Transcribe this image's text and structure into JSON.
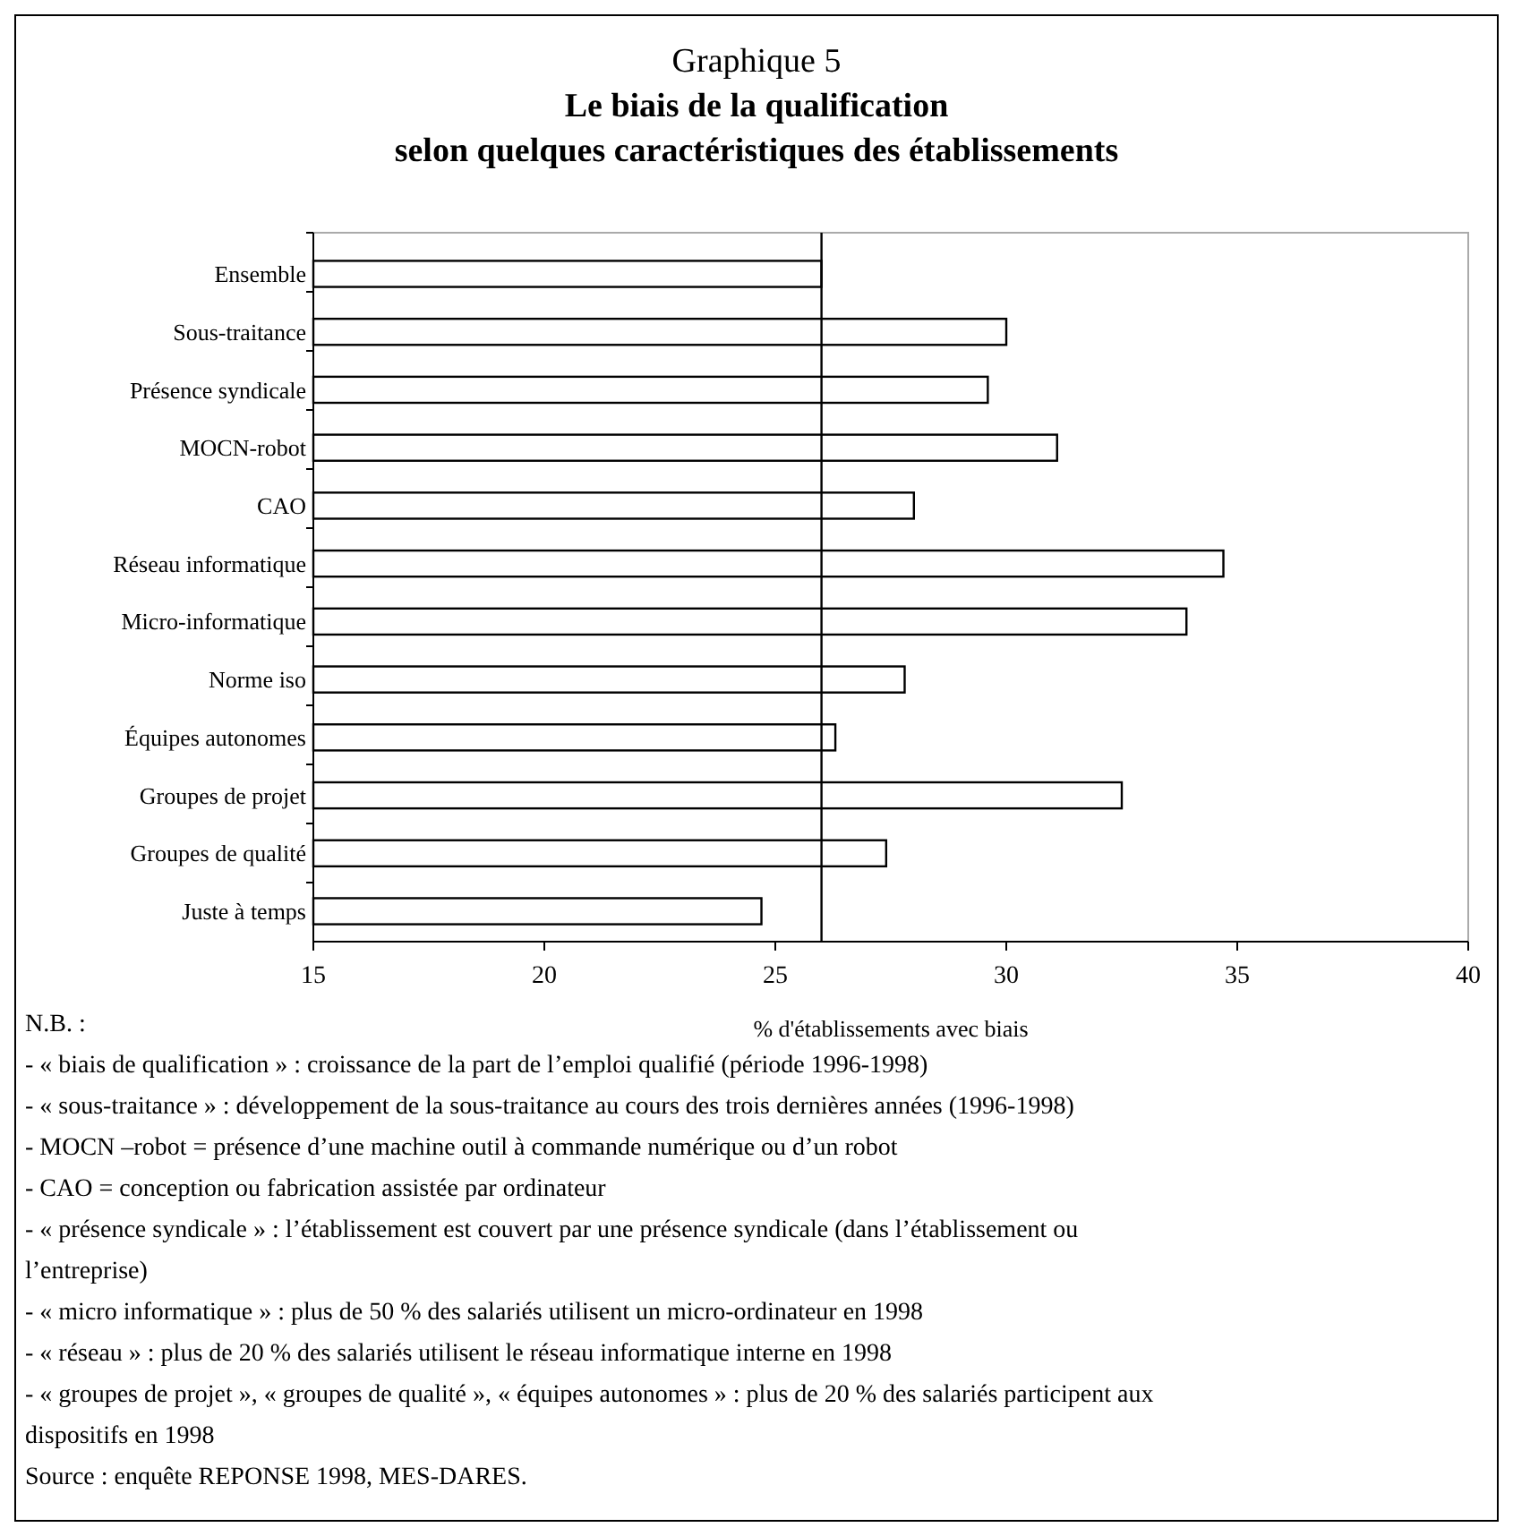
{
  "chart_data": {
    "type": "bar",
    "orientation": "horizontal",
    "title": "Graphique 5",
    "subtitle": "Le biais de la qualification\nselon quelques caractéristiques des établissements",
    "categories": [
      "Ensemble",
      "Sous-traitance",
      "Présence syndicale",
      "MOCN-robot",
      "CAO",
      "Réseau informatique",
      "Micro-informatique",
      "Norme iso",
      "Équipes autonomes",
      "Groupes de projet",
      "Groupes de qualité",
      "Juste à temps"
    ],
    "values": [
      26.0,
      30.0,
      29.6,
      31.1,
      28.0,
      34.7,
      33.9,
      27.8,
      26.3,
      32.5,
      27.4,
      24.7
    ],
    "color": "#ffffff",
    "xlim": [
      15,
      40
    ],
    "xticks": [
      15,
      20,
      25,
      30,
      35,
      40
    ],
    "xlabel": "% d'établissements avec biais",
    "grid": false,
    "ref_lines": [
      {
        "axis": "x",
        "value": 26,
        "color": "#000000"
      }
    ],
    "annotations": [
      "N.B. :",
      "- « biais de qualification » : croissance de la part de l’emploi qualifié (période 1996-1998)",
      "- « sous-traitance » : développement de la sous-traitance au cours des trois dernières années  (1996-1998)",
      "- MOCN –robot = présence d’une machine outil à commande numérique ou d’un robot",
      "- CAO = conception ou fabrication assistée par ordinateur",
      "- « présence syndicale » : l’établissement est couvert par une présence syndicale (dans l’établissement ou l’entreprise)",
      "- « micro informatique » : plus de 50 % des salariés utilisent un micro-ordinateur en 1998",
      "- « réseau » : plus de 20 % des salariés utilisent le réseau informatique interne en 1998",
      "- « groupes de projet », « groupes de qualité », « équipes autonomes » : plus de 20 % des salariés participent aux dispositifs en 1998",
      "Source : enquête REPONSE 1998, MES-DARES."
    ]
  }
}
